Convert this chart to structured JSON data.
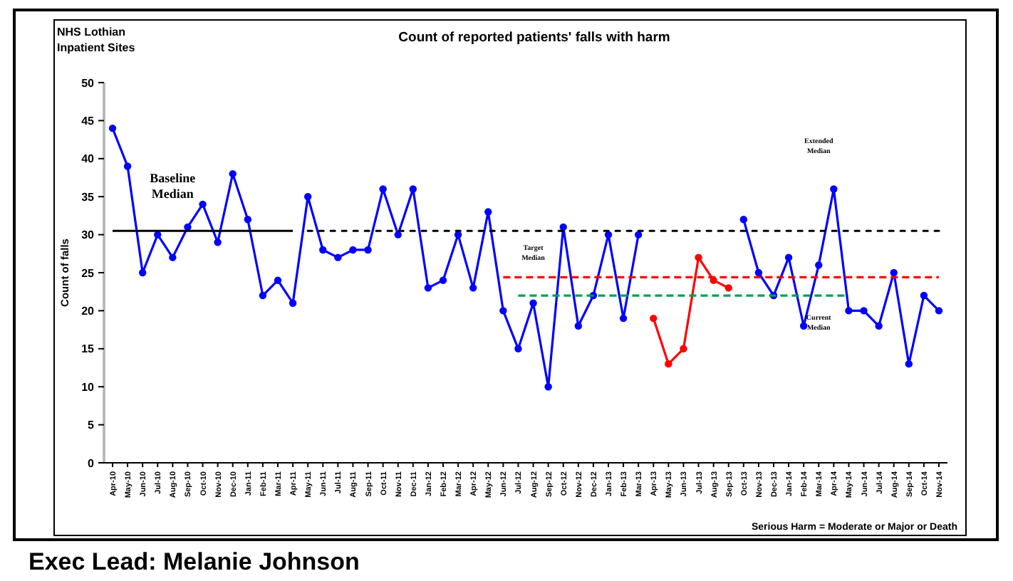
{
  "chart_data": {
    "type": "line",
    "title": "Count of reported patients' falls with harm",
    "subtitle": "NHS Lothian Inpatient Sites",
    "ylabel": "Count of falls",
    "categories": [
      "Apr-10",
      "May-10",
      "Jun-10",
      "Jul-10",
      "Aug-10",
      "Sep-10",
      "Oct-10",
      "Nov-10",
      "Dec-10",
      "Jan-11",
      "Feb-11",
      "Mar-11",
      "Apr-11",
      "May-11",
      "Jun-11",
      "Jul-11",
      "Aug-11",
      "Sep-11",
      "Oct-11",
      "Nov-11",
      "Dec-11",
      "Jan-12",
      "Feb-12",
      "Mar-12",
      "Apr-12",
      "May-12",
      "Jun-12",
      "Jul-12",
      "Aug-12",
      "Sep-12",
      "Oct-12",
      "Nov-12",
      "Dec-12",
      "Jan-13",
      "Feb-13",
      "Mar-13",
      "Apr-13",
      "May-13",
      "Jun-13",
      "Jul-13",
      "Aug-13",
      "Sep-13",
      "Oct-13",
      "Nov-13",
      "Dec-13",
      "Jan-14",
      "Feb-14",
      "Mar-14",
      "Apr-14",
      "May-14",
      "Jun-14",
      "Jul-14",
      "Aug-14",
      "Sep-14",
      "Oct-14",
      "Nov-14"
    ],
    "series": [
      {
        "color": "#0000ff",
        "values": [
          44,
          39,
          25,
          30,
          27,
          31,
          34,
          29,
          38,
          32,
          22,
          24,
          21,
          35,
          28,
          27,
          28,
          28,
          36,
          30,
          36,
          23,
          24,
          30,
          23,
          33,
          20,
          15,
          21,
          10,
          31,
          18,
          22,
          30,
          19,
          30,
          null,
          null,
          null,
          null,
          null,
          null,
          32,
          25,
          22,
          27,
          18,
          26,
          36,
          20,
          20,
          18,
          25,
          13,
          22,
          20
        ]
      },
      {
        "color": "#ff0000",
        "values": [
          null,
          null,
          null,
          null,
          null,
          null,
          null,
          null,
          null,
          null,
          null,
          null,
          null,
          null,
          null,
          null,
          null,
          null,
          null,
          null,
          null,
          null,
          null,
          null,
          null,
          null,
          null,
          null,
          null,
          null,
          null,
          null,
          null,
          null,
          null,
          null,
          19,
          13,
          15,
          27,
          24,
          23,
          null,
          null,
          null,
          null,
          null,
          null,
          null,
          null,
          null,
          null,
          null,
          null,
          null,
          null
        ]
      },
      {
        "color": "#000000",
        "marker": "none",
        "line_style": "solid",
        "values": [
          30.5,
          30.5,
          30.5,
          30.5,
          30.5,
          30.5,
          30.5,
          30.5,
          30.5,
          30.5,
          30.5,
          30.5,
          30.5,
          null,
          null,
          null,
          null,
          null,
          null,
          null,
          null,
          null,
          null,
          null,
          null,
          null,
          null,
          null,
          null,
          null,
          null,
          null,
          null,
          null,
          null,
          null,
          null,
          null,
          null,
          null,
          null,
          null,
          null,
          null,
          null,
          null,
          null,
          null,
          null,
          null,
          null,
          null,
          null,
          null,
          null,
          null
        ]
      },
      {
        "color": "#000000",
        "marker": "none",
        "line_style": "dotted",
        "values": [
          null,
          null,
          null,
          null,
          null,
          null,
          null,
          null,
          null,
          null,
          null,
          null,
          null,
          30.5,
          30.5,
          30.5,
          30.5,
          30.5,
          30.5,
          30.5,
          30.5,
          30.5,
          30.5,
          30.5,
          30.5,
          30.5,
          30.5,
          30.5,
          30.5,
          30.5,
          30.5,
          30.5,
          30.5,
          30.5,
          30.5,
          30.5,
          30.5,
          30.5,
          30.5,
          30.5,
          30.5,
          30.5,
          30.5,
          30.5,
          30.5,
          30.5,
          30.5,
          30.5,
          30.5,
          30.5,
          30.5,
          30.5,
          30.5,
          30.5,
          30.5,
          30.5
        ]
      },
      {
        "color": "#ff0000",
        "marker": "none",
        "line_style": "dashed",
        "values": [
          null,
          null,
          null,
          null,
          null,
          null,
          null,
          null,
          null,
          null,
          null,
          null,
          null,
          null,
          null,
          null,
          null,
          null,
          null,
          null,
          null,
          null,
          null,
          null,
          null,
          null,
          24.4,
          24.4,
          24.4,
          24.4,
          24.4,
          24.4,
          24.4,
          24.4,
          24.4,
          24.4,
          24.4,
          24.4,
          24.4,
          24.4,
          24.4,
          24.4,
          24.4,
          24.4,
          24.4,
          24.4,
          24.4,
          24.4,
          24.4,
          24.4,
          24.4,
          24.4,
          24.4,
          24.4,
          24.4,
          24.4
        ]
      },
      {
        "color": "#00a050",
        "marker": "none",
        "line_style": "dashed",
        "values": [
          null,
          null,
          null,
          null,
          null,
          null,
          null,
          null,
          null,
          null,
          null,
          null,
          null,
          null,
          null,
          null,
          null,
          null,
          null,
          null,
          null,
          null,
          null,
          null,
          null,
          null,
          null,
          22,
          22,
          22,
          22,
          22,
          22,
          22,
          22,
          22,
          22,
          22,
          22,
          22,
          22,
          22,
          22,
          22,
          22,
          22,
          22,
          22,
          22,
          22,
          null,
          null,
          null,
          null,
          null,
          null
        ]
      }
    ],
    "ylim": [
      0,
      50
    ],
    "yticks": [
      0,
      5,
      10,
      15,
      20,
      25,
      30,
      35,
      40,
      45,
      50
    ],
    "grid": false,
    "marker": "circle",
    "line_style": "solid",
    "annotations": [
      {
        "text": "Baseline Median",
        "x": "Aug-10",
        "y": 30.5
      },
      {
        "text": "Target Median",
        "x": "Aug-12",
        "y": 24.4
      },
      "Extended Median",
      {
        "text": "Current Median",
        "x": "Mar-14",
        "y": 22
      },
      "Serious Harm = Moderate or Major or Death",
      "Exec Lead: Melanie Johnson"
    ]
  }
}
